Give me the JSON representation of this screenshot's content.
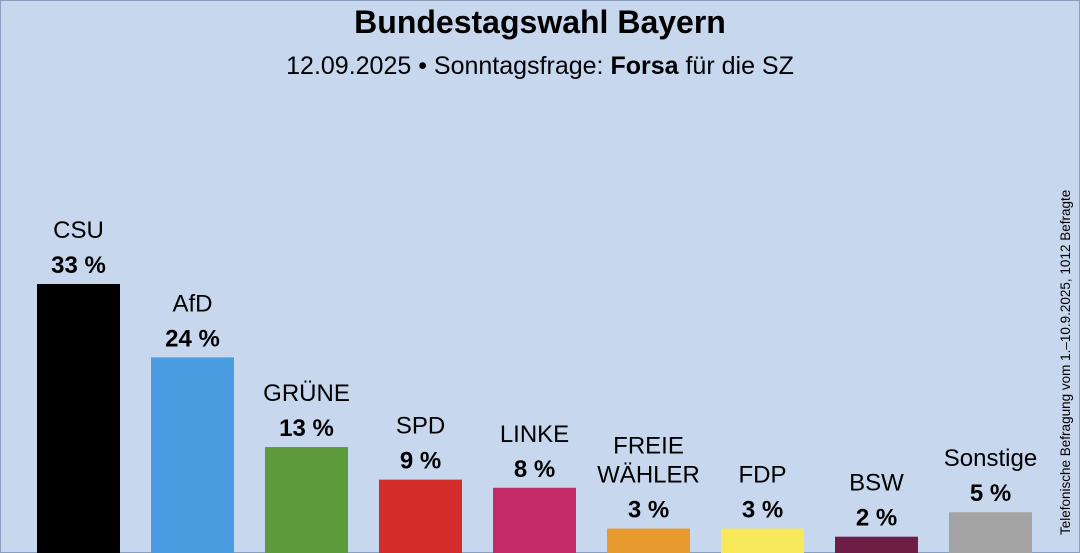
{
  "header": {
    "title": "Bundestagswahl Bayern",
    "subtitle_date": "12.09.2025 • Sonntagsfrage:",
    "subtitle_institute": "Forsa",
    "subtitle_client": "für die SZ"
  },
  "side_note": "Telefonische Befragung vom 1.–10.9.2025, 1012 Befragte",
  "colors": {
    "background": "#c6d7ee"
  },
  "chart_data": {
    "type": "bar",
    "title": "Bundestagswahl Bayern",
    "categories": [
      [
        "CSU"
      ],
      [
        "AfD"
      ],
      [
        "GRÜNE"
      ],
      [
        "SPD"
      ],
      [
        "LINKE"
      ],
      [
        "FREIE",
        "WÄHLER"
      ],
      [
        "FDP"
      ],
      [
        "BSW"
      ],
      [
        "Sonstige"
      ]
    ],
    "values": [
      33,
      24,
      13,
      9,
      8,
      3,
      3,
      2,
      5
    ],
    "value_labels": [
      "33 %",
      "24 %",
      "13 %",
      "9 %",
      "8 %",
      "3 %",
      "3 %",
      "2 %",
      "5 %"
    ],
    "colors": [
      "#000000",
      "#4a9de0",
      "#5c9a3c",
      "#d42b2b",
      "#c22a68",
      "#e89a2e",
      "#f7e85a",
      "#6e1e45",
      "#a3a3a3"
    ],
    "ylim": [
      0,
      33
    ],
    "grid": false,
    "legend": "none"
  }
}
